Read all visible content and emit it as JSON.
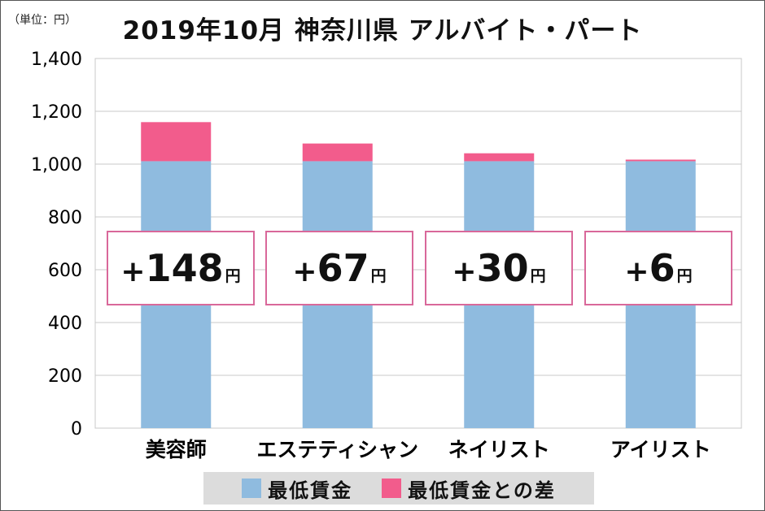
{
  "colors": {
    "min_wage": "#8fbbdf",
    "difference": "#f25c8c",
    "box_border": "#d9689a",
    "grid": "#c8c8c8"
  },
  "chart_data": {
    "type": "bar",
    "stacked": true,
    "title": "2019年10月 神奈川県 アルバイト・パート",
    "unit_note": "（単位：円）",
    "categories": [
      "美容師",
      "エステティシャン",
      "ネイリスト",
      "アイリスト"
    ],
    "series": [
      {
        "name": "最低賃金",
        "values": [
          1011,
          1011,
          1011,
          1011
        ]
      },
      {
        "name": "最低賃金との差",
        "values": [
          148,
          67,
          30,
          6
        ]
      }
    ],
    "ylim": [
      0,
      1400
    ],
    "yticks": [
      {
        "value": 0,
        "label": "0"
      },
      {
        "value": 200,
        "label": "200"
      },
      {
        "value": 400,
        "label": "400"
      },
      {
        "value": 600,
        "label": "600"
      },
      {
        "value": 800,
        "label": "800"
      },
      {
        "value": 1000,
        "label": "1,000"
      },
      {
        "value": 1200,
        "label": "1,200"
      },
      {
        "value": 1400,
        "label": "1,400"
      }
    ],
    "grid": true,
    "legend_position": "bottom",
    "annotations": [
      {
        "sign": "+",
        "value": "148",
        "unit": "円"
      },
      {
        "sign": "+",
        "value": "67",
        "unit": "円"
      },
      {
        "sign": "+",
        "value": "30",
        "unit": "円"
      },
      {
        "sign": "+",
        "value": "6",
        "unit": "円"
      }
    ]
  }
}
